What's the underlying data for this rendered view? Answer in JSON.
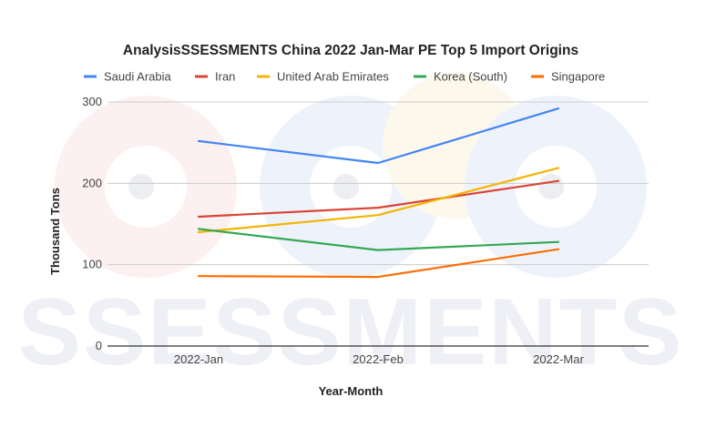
{
  "chart_data": {
    "type": "line",
    "title": "AnalysisSSESSMENTS China 2022 Jan-Mar PE Top 5 Import Origins",
    "xlabel": "Year-Month",
    "ylabel": "Thousand Tons",
    "categories": [
      "2022-Jan",
      "2022-Feb",
      "2022-Mar"
    ],
    "ylim": [
      0,
      300
    ],
    "yticks": [
      0,
      100,
      200,
      300
    ],
    "grid": true,
    "legend_position": "top",
    "watermark": "SSESSMENTS",
    "series": [
      {
        "name": "Saudi Arabia",
        "color": "#4285f4",
        "values": [
          252,
          225,
          292
        ]
      },
      {
        "name": "Iran",
        "color": "#db4437",
        "values": [
          159,
          170,
          203
        ]
      },
      {
        "name": "United Arab Emirates",
        "color": "#f4b400",
        "values": [
          140,
          161,
          219
        ]
      },
      {
        "name": "Korea (South)",
        "color": "#34a853",
        "values": [
          144,
          118,
          128
        ]
      },
      {
        "name": "Singapore",
        "color": "#ff6d01",
        "values": [
          86,
          85,
          119
        ]
      }
    ]
  }
}
